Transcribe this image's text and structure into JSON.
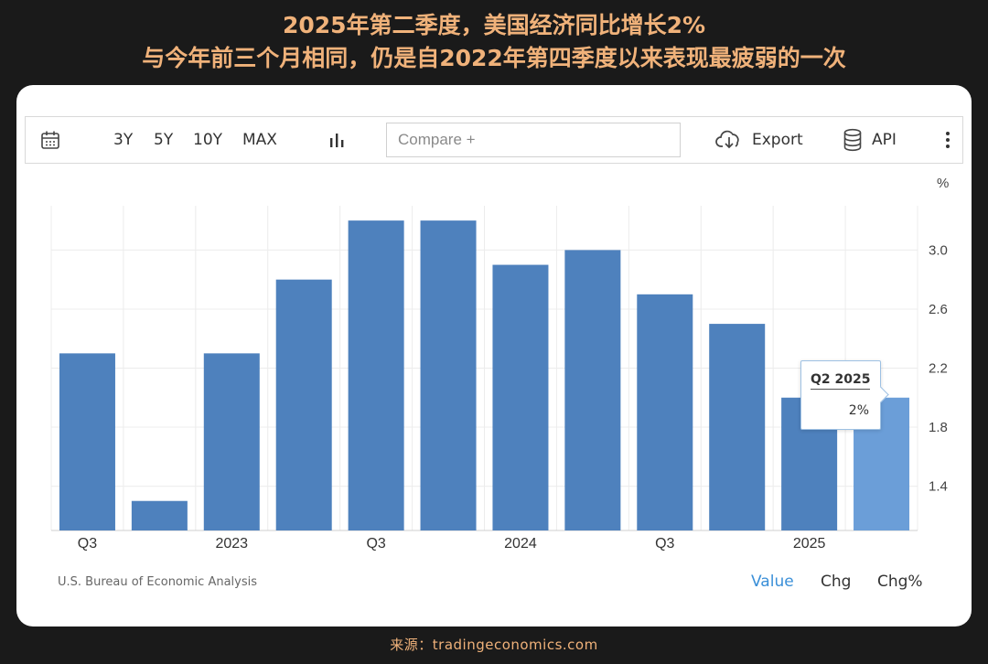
{
  "headline": {
    "line1": "2025年第二季度，美国经济同比增长2%",
    "line2": "与今年前三个月相同，仍是自2022年第四季度以来表现最疲弱的一次"
  },
  "toolbar": {
    "calendar_icon": "calendar-icon",
    "ranges": [
      "3Y",
      "5Y",
      "10Y",
      "MAX"
    ],
    "chart_type_icon": "bar-chart-icon",
    "compare_placeholder": "Compare +",
    "export_label": "Export",
    "export_icon": "cloud-download-icon",
    "api_label": "API",
    "api_icon": "database-icon",
    "more_icon": "more-vertical-icon"
  },
  "tooltip": {
    "title": "Q2 2025",
    "value": "2%"
  },
  "footer": {
    "source_credit": "U.S. Bureau of Economic Analysis",
    "tabs": [
      "Value",
      "Chg",
      "Chg%"
    ],
    "active_tab": "Value"
  },
  "source_line": "来源：tradingeconomics.com",
  "colors": {
    "bar": "#4e81bd",
    "bar_highlight": "#6b9ed8",
    "accent": "#f0b27a",
    "active_tab": "#3a8fd8"
  },
  "chart_data": {
    "type": "bar",
    "categories": [
      "Q3",
      "",
      "2023",
      "",
      "Q3",
      "",
      "2024",
      "",
      "Q3",
      "",
      "2025",
      ""
    ],
    "values": [
      2.3,
      1.3,
      2.3,
      2.8,
      3.2,
      3.2,
      2.9,
      3.0,
      2.7,
      2.5,
      2.0,
      2.0
    ],
    "highlight_index": 11,
    "unit_label": "%",
    "y_ticks": [
      1.4,
      1.8,
      2.2,
      2.6,
      3.0
    ],
    "ylim": [
      1.1,
      3.3
    ],
    "y_axis_side": "right",
    "grid": true
  }
}
